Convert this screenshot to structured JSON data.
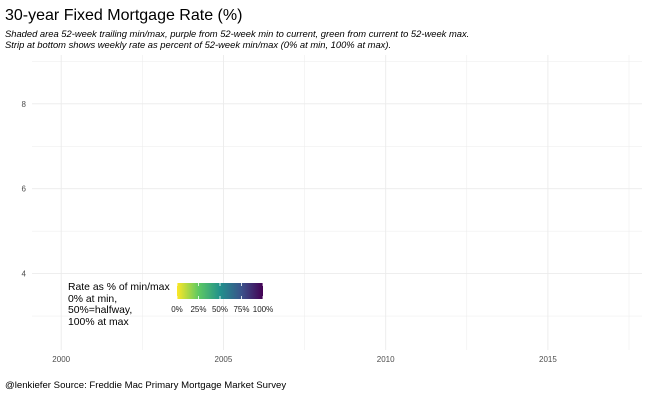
{
  "chart_data": {
    "type": "area",
    "title": "30-year Fixed Mortgage Rate (%)",
    "subtitle": [
      "Shaded area 52-week trailing min/max, purple from 52-week min to current, green from current to 52-week max.",
      "Strip at bottom shows weekly rate as percent of 52-week min/max (0% at min, 100% at max)."
    ],
    "caption": "@lenkiefer Source: Freddie Mac Primary Mortgage Market Survey",
    "xlabel": "",
    "ylabel": "",
    "x_ticks": [
      2000,
      2005,
      2010,
      2015
    ],
    "x_tick_labels": [
      "2000",
      "2005",
      "2010",
      "2015"
    ],
    "xlim": [
      1999.1,
      2017.9
    ],
    "y_ticks": [
      4,
      6,
      8
    ],
    "y_tick_labels": [
      "4",
      "6",
      "8"
    ],
    "ylim": [
      2.2,
      9.15
    ],
    "series": [],
    "grid": true,
    "legend": {
      "title_lines": [
        "Rate as % of min/max",
        "0% at min,",
        "50%=halfway,",
        "100% at max"
      ],
      "placement": "bottom-left",
      "type": "colorbar",
      "palette": "viridis",
      "colors": [
        "#fde725",
        "#5ec962",
        "#21918c",
        "#3b528b",
        "#440154"
      ],
      "break_values": [
        0,
        0.25,
        0.5,
        0.75,
        1
      ],
      "break_labels": [
        "0%",
        "25%",
        "50%",
        "75%",
        "100%"
      ]
    },
    "colors": {
      "grid": "#ebebeb",
      "axis_text": "#4d4d4d",
      "background": "#ffffff"
    }
  }
}
